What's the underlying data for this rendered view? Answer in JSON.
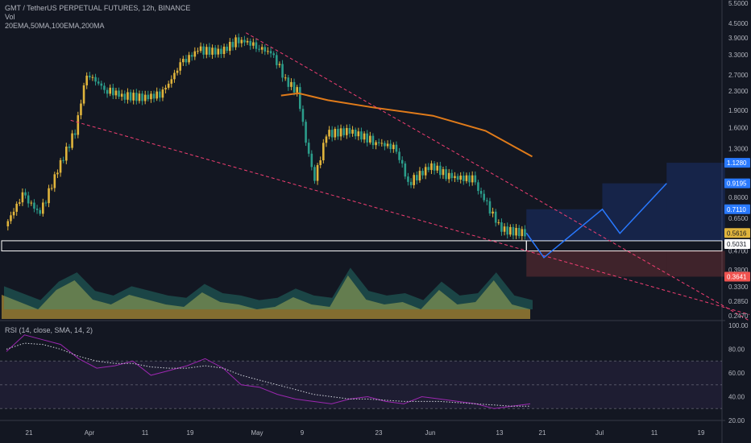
{
  "header": {
    "symbol_line": "GMT / TetherUS PERPETUAL FUTURES, 12h, BINANCE",
    "vol_label": "Vol",
    "indicators_line": "20EMA,50MA,100EMA,200MA",
    "rsi_label": "RSI (14, close, SMA, 14, 2)"
  },
  "colors": {
    "background": "#131722",
    "up": "#26a69a",
    "down": "#ef5350",
    "candle_up": "#e0b43c",
    "candle_down": "#2b9c8a",
    "ma": "#e07b1a",
    "trendline": "#f23e72",
    "projection": "#2979ff",
    "rsi": "#9c27b0"
  },
  "chart_data": [
    {
      "type": "candlestick",
      "title": "GMT / TetherUS PERPETUAL FUTURES, 12h, BINANCE",
      "price_scale": "log",
      "ylim": [
        0.247,
        5.5
      ],
      "y_ticks": [
        "5.5000",
        "4.5000",
        "3.9000",
        "3.3000",
        "2.7000",
        "2.3000",
        "1.9000",
        "1.6000",
        "1.3000",
        "0.9195",
        "0.8000",
        "0.6500",
        "0.4700",
        "0.3900",
        "0.3300",
        "0.2850",
        "0.2470"
      ],
      "x_ticks": [
        "21",
        "Apr",
        "11",
        "19",
        "May",
        "9",
        "23",
        "Jun",
        "13",
        "21",
        "Jul",
        "11",
        "19"
      ],
      "close_path": [
        {
          "x": "Mar 20",
          "close": 0.6
        },
        {
          "x": "Mar 23",
          "close": 0.82
        },
        {
          "x": "Mar 26",
          "close": 0.68
        },
        {
          "x": "Mar 29",
          "close": 1.05
        },
        {
          "x": "Apr 1",
          "close": 1.55
        },
        {
          "x": "Apr 3",
          "close": 2.75
        },
        {
          "x": "Apr 6",
          "close": 2.35
        },
        {
          "x": "Apr 9",
          "close": 2.2
        },
        {
          "x": "Apr 13",
          "close": 2.15
        },
        {
          "x": "Apr 16",
          "close": 2.25
        },
        {
          "x": "Apr 19",
          "close": 3.0
        },
        {
          "x": "Apr 22",
          "close": 3.45
        },
        {
          "x": "Apr 26",
          "close": 3.4
        },
        {
          "x": "Apr 29",
          "close": 3.85
        },
        {
          "x": "May 2",
          "close": 3.6
        },
        {
          "x": "May 5",
          "close": 3.3
        },
        {
          "x": "May 7",
          "close": 2.55
        },
        {
          "x": "May 9",
          "close": 2.3
        },
        {
          "x": "May 11",
          "close": 1.2
        },
        {
          "x": "May 12",
          "close": 0.95
        },
        {
          "x": "May 14",
          "close": 1.5
        },
        {
          "x": "May 18",
          "close": 1.55
        },
        {
          "x": "May 22",
          "close": 1.4
        },
        {
          "x": "May 26",
          "close": 1.3
        },
        {
          "x": "May 28",
          "close": 0.92
        },
        {
          "x": "Jun 1",
          "close": 1.1
        },
        {
          "x": "Jun 4",
          "close": 0.98
        },
        {
          "x": "Jun 8",
          "close": 0.96
        },
        {
          "x": "Jun 10",
          "close": 0.78
        },
        {
          "x": "Jun 13",
          "close": 0.58
        },
        {
          "x": "Jun 17",
          "close": 0.5616
        }
      ],
      "moving_average": [
        {
          "x": "May 6",
          "value": 2.2
        },
        {
          "x": "May 9",
          "value": 2.25
        },
        {
          "x": "May 14",
          "value": 2.1
        },
        {
          "x": "May 22",
          "value": 1.95
        },
        {
          "x": "Jun 1",
          "value": 1.8
        },
        {
          "x": "Jun 10",
          "value": 1.55
        },
        {
          "x": "Jun 18",
          "value": 1.2
        }
      ],
      "price_labels": [
        {
          "text": "1.1280",
          "value": 1.128,
          "color": "#2979ff"
        },
        {
          "text": "0.9195",
          "value": 0.9195,
          "color": "#2979ff"
        },
        {
          "text": "0.7110",
          "value": 0.711,
          "color": "#2979ff"
        },
        {
          "text": "0.5616",
          "value": 0.5616,
          "color": "#e0b43c"
        },
        {
          "text": "0.5031",
          "value": 0.5031,
          "color": "#ffffff"
        },
        {
          "text": "0.3641",
          "value": 0.3641,
          "color": "#ef5350"
        }
      ],
      "support_zone": [
        0.47,
        0.52
      ],
      "stop_zone": [
        0.3641,
        0.47
      ],
      "targets": [
        {
          "from": "Jun 17",
          "to": "Jun 30",
          "level": 0.711
        },
        {
          "from": "Jun 30",
          "to": "Jul 11",
          "level": 0.9195
        },
        {
          "from": "Jul 11",
          "to": "Jul 21",
          "level": 1.128
        }
      ],
      "projection_path": [
        {
          "x": "Jun 17",
          "y": 0.5616
        },
        {
          "x": "Jun 20",
          "y": 0.44
        },
        {
          "x": "Jun 30",
          "y": 0.711
        },
        {
          "x": "Jul 3",
          "y": 0.56
        },
        {
          "x": "Jul 11",
          "y": 0.9195
        }
      ]
    },
    {
      "type": "area",
      "title": "Vol",
      "series": [
        {
          "values": [
            0.5,
            0.35,
            0.2,
            0.6,
            0.8,
            0.4,
            0.3,
            0.5,
            0.4,
            0.3,
            0.25,
            0.55,
            0.35,
            0.3,
            0.2,
            0.25,
            0.45,
            0.3,
            0.25,
            0.9,
            0.4,
            0.3,
            0.35,
            0.2,
            0.6,
            0.3,
            0.35,
            0.8,
            0.3,
            0.2
          ]
        }
      ]
    },
    {
      "type": "line",
      "title": "RSI (14, close, SMA, 14, 2)",
      "ylim": [
        20,
        100
      ],
      "y_ticks": [
        "100.00",
        "80.00",
        "60.00",
        "40.00",
        "20.00"
      ],
      "bands": [
        30,
        70
      ],
      "series": [
        {
          "values": [
            78,
            92,
            88,
            84,
            72,
            64,
            66,
            70,
            58,
            62,
            66,
            72,
            64,
            50,
            48,
            42,
            38,
            36,
            34,
            38,
            40,
            36,
            34,
            40,
            38,
            36,
            34,
            30,
            32,
            34
          ]
        },
        {
          "values": [
            80,
            85,
            84,
            80,
            74,
            70,
            68,
            68,
            65,
            64,
            64,
            66,
            64,
            58,
            54,
            50,
            46,
            42,
            40,
            38,
            38,
            37,
            36,
            36,
            36,
            35,
            34,
            33,
            32,
            32
          ]
        }
      ]
    }
  ]
}
